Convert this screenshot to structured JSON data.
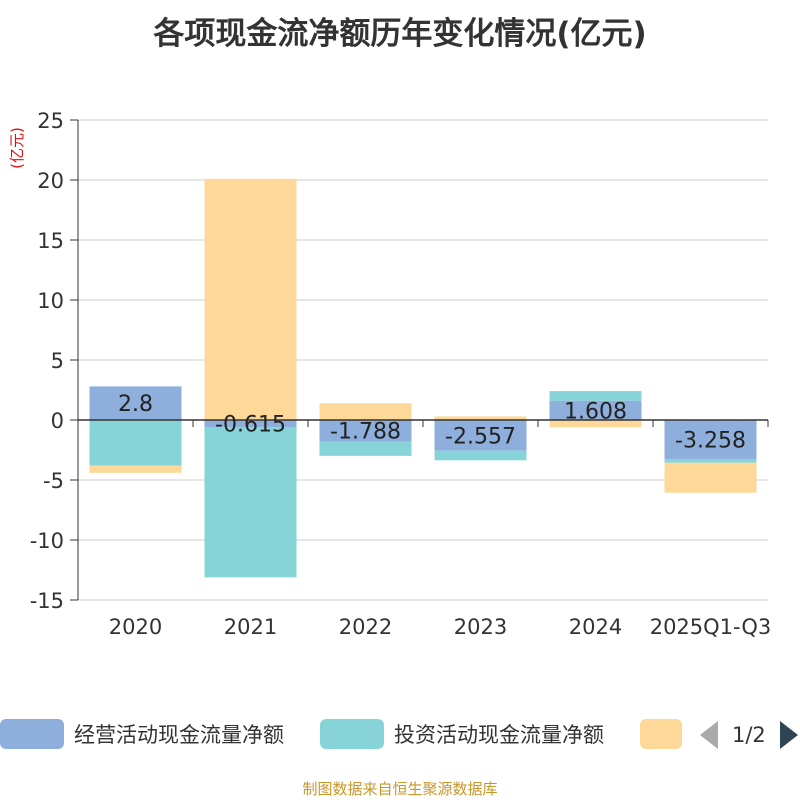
{
  "title": "各项现金流净额历年变化情况(亿元)",
  "footer": "制图数据来自恒生聚源数据库",
  "pager": "1/2",
  "chart_data": {
    "type": "bar",
    "stacked": true,
    "title": "各项现金流净额历年变化情况(亿元)",
    "ylabel": "(亿元)",
    "ylim": [
      -15,
      25
    ],
    "yticks": [
      25,
      20,
      15,
      10,
      5,
      0,
      -5,
      -10,
      -15
    ],
    "categories": [
      "2020",
      "2021",
      "2022",
      "2023",
      "2024",
      "2025Q1-Q3"
    ],
    "series": [
      {
        "name": "经营活动现金流量净额",
        "color": "#8eaedb",
        "values": [
          2.8,
          -0.615,
          -1.788,
          -2.557,
          1.608,
          -3.258
        ],
        "labels": [
          "2.8",
          "-0.615",
          "-1.788",
          "-2.557",
          "1.608",
          "-3.258"
        ]
      },
      {
        "name": "投资活动现金流量净额",
        "color": "#86d4d8",
        "values": [
          -3.8,
          -12.5,
          -1.2,
          -0.8,
          0.8,
          -0.3
        ]
      },
      {
        "name": "",
        "color": "#fdd898",
        "values": [
          -0.6,
          20.1,
          1.4,
          0.3,
          -0.6,
          -2.5
        ]
      }
    ],
    "legend_position": "bottom"
  }
}
